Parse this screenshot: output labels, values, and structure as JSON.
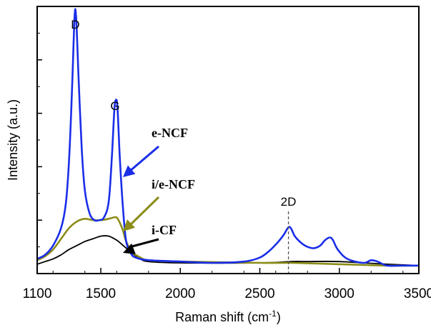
{
  "chart_data": {
    "type": "line",
    "xlabel": "Raman shift (cm",
    "xlabel_sup": "-1",
    "xlabel_close": ")",
    "ylabel": "Intensity (a.u.)",
    "xlim": [
      1100,
      3500
    ],
    "ylim": [
      0,
      100
    ],
    "x_ticks": [
      1100,
      1500,
      2000,
      2500,
      3000,
      3500
    ],
    "peak_labels": [
      {
        "text": "D",
        "x": 1340
      },
      {
        "text": "G",
        "x": 1590
      },
      {
        "text": "2D",
        "x": 2680
      }
    ],
    "colors": {
      "e-NCF": "#1a2ee8",
      "i/e-NCF": "#8c8c1a",
      "i-CF": "#000000"
    },
    "series": [
      {
        "name": "e-NCF",
        "x": [
          1100,
          1150,
          1200,
          1250,
          1280,
          1300,
          1320,
          1335,
          1345,
          1360,
          1380,
          1400,
          1430,
          1460,
          1490,
          1520,
          1550,
          1570,
          1585,
          1595,
          1605,
          1620,
          1640,
          1660,
          1690,
          1720,
          1800,
          2000,
          2200,
          2400,
          2500,
          2560,
          2610,
          2650,
          2670,
          2685,
          2700,
          2720,
          2760,
          2800,
          2840,
          2880,
          2910,
          2940,
          2960,
          2990,
          3050,
          3150,
          3200,
          3240,
          3300,
          3400,
          3500
        ],
        "y": [
          5.5,
          7,
          10.5,
          17,
          26,
          42,
          70,
          96,
          96,
          74,
          47,
          31,
          22.5,
          20,
          20,
          21,
          27,
          44,
          61,
          65,
          62,
          43,
          24,
          12,
          7.5,
          6,
          5,
          4.5,
          4,
          4.5,
          6,
          8.5,
          11.5,
          14.5,
          16.5,
          17.5,
          16.5,
          14,
          11.5,
          10,
          9.5,
          10.5,
          12.5,
          13.5,
          12.5,
          9,
          5.5,
          4,
          5,
          4.5,
          3,
          3,
          3
        ]
      },
      {
        "name": "i/e-NCF",
        "x": [
          1100,
          1150,
          1200,
          1250,
          1300,
          1350,
          1400,
          1450,
          1500,
          1550,
          1580,
          1600,
          1620,
          1640,
          1660,
          1700,
          1750,
          1800,
          2000,
          2500,
          2700,
          3000,
          3300,
          3500
        ],
        "y": [
          5,
          6.5,
          9,
          13,
          17,
          19.5,
          20.5,
          20,
          20,
          20.5,
          21,
          21,
          19,
          16,
          12,
          8,
          6,
          5,
          4.5,
          4,
          4,
          3.5,
          3,
          3
        ]
      },
      {
        "name": "i-CF",
        "x": [
          1100,
          1150,
          1200,
          1250,
          1300,
          1350,
          1400,
          1450,
          1500,
          1550,
          1600,
          1650,
          1700,
          1750,
          1800,
          2000,
          2500,
          2700,
          2800,
          3000,
          3300,
          3500
        ],
        "y": [
          3.5,
          4.5,
          5.5,
          7,
          9,
          10.5,
          12,
          13,
          14,
          14,
          12.5,
          10,
          7.5,
          5.5,
          4.5,
          4,
          4,
          4.5,
          4.5,
          4.5,
          3.5,
          3
        ]
      }
    ],
    "annotations": [
      {
        "text": "e-NCF",
        "series": "e-NCF"
      },
      {
        "text": "i/e-NCF",
        "series": "i/e-NCF"
      },
      {
        "text": "i-CF",
        "series": "i-CF"
      }
    ]
  }
}
